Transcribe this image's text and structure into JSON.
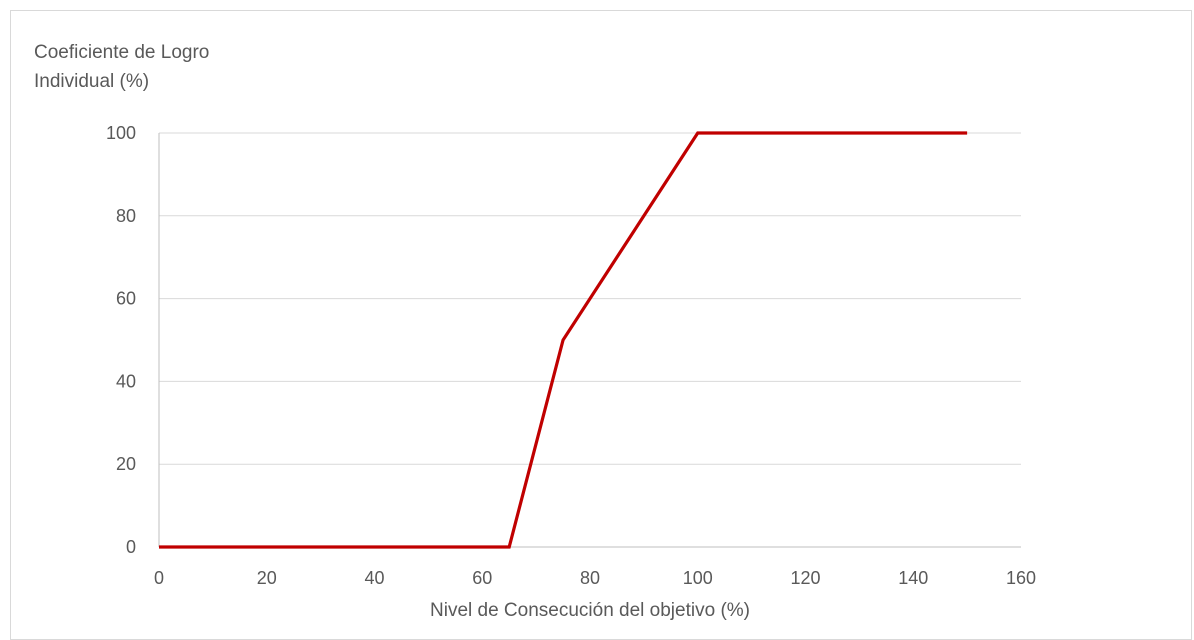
{
  "chart_data": {
    "type": "line",
    "ylabel": "Coeficiente de Logro Individual (%)",
    "ylabel_lines": [
      "Coeficiente de Logro",
      "Individual (%)"
    ],
    "xlabel": "Nivel de Consecución del objetivo (%)",
    "xlim": [
      0,
      160
    ],
    "ylim": [
      0,
      100
    ],
    "x_ticks": [
      0,
      20,
      40,
      60,
      80,
      100,
      120,
      140,
      160
    ],
    "y_ticks": [
      0,
      20,
      40,
      60,
      80,
      100
    ],
    "grid": "horizontal",
    "legend": "none",
    "series": [
      {
        "color": "#c00000",
        "x": [
          0,
          65,
          75,
          100,
          150
        ],
        "y": [
          0,
          0,
          50,
          100,
          100
        ]
      }
    ]
  }
}
